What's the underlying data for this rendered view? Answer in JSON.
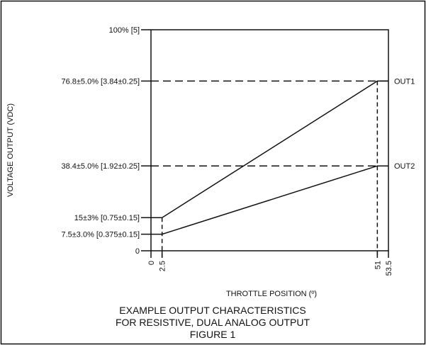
{
  "chart_data": {
    "type": "line",
    "xlabel": "THROTTLE POSITION (º)",
    "ylabel": "VOLTAGE OUTPUT (VDC)",
    "caption": [
      "EXAMPLE OUTPUT CHARACTERISTICS",
      "FOR RESISTIVE, DUAL ANALOG OUTPUT",
      "FIGURE 1"
    ],
    "xlim": [
      0,
      53.5
    ],
    "ylim": [
      0,
      100
    ],
    "x_ticks": [
      {
        "value": 0,
        "label": "0"
      },
      {
        "value": 2.5,
        "label": "2.5"
      },
      {
        "value": 51,
        "label": "51"
      },
      {
        "value": 53.5,
        "label": "53.5"
      }
    ],
    "y_ticks": [
      {
        "value": 0,
        "label": "0"
      },
      {
        "value": 7.5,
        "label": "7.5±3.0% [0.375±0.15]"
      },
      {
        "value": 15,
        "label": "15±3% [0.75±0.15]"
      },
      {
        "value": 38.4,
        "label": "38.4±5.0% [1.92±0.25]"
      },
      {
        "value": 76.8,
        "label": "76.8±5.0% [3.84±0.25]"
      },
      {
        "value": 100,
        "label": "100% [5]"
      }
    ],
    "series": [
      {
        "name": "OUT1",
        "x": [
          0,
          2.5,
          51,
          53.5
        ],
        "y": [
          15,
          15,
          76.8,
          76.8
        ]
      },
      {
        "name": "OUT2",
        "x": [
          0,
          2.5,
          51,
          53.5
        ],
        "y": [
          7.5,
          7.5,
          38.4,
          38.4
        ]
      }
    ],
    "guides": {
      "horizontal": [
        76.8,
        38.4
      ],
      "vertical": [
        2.5,
        51
      ]
    }
  }
}
